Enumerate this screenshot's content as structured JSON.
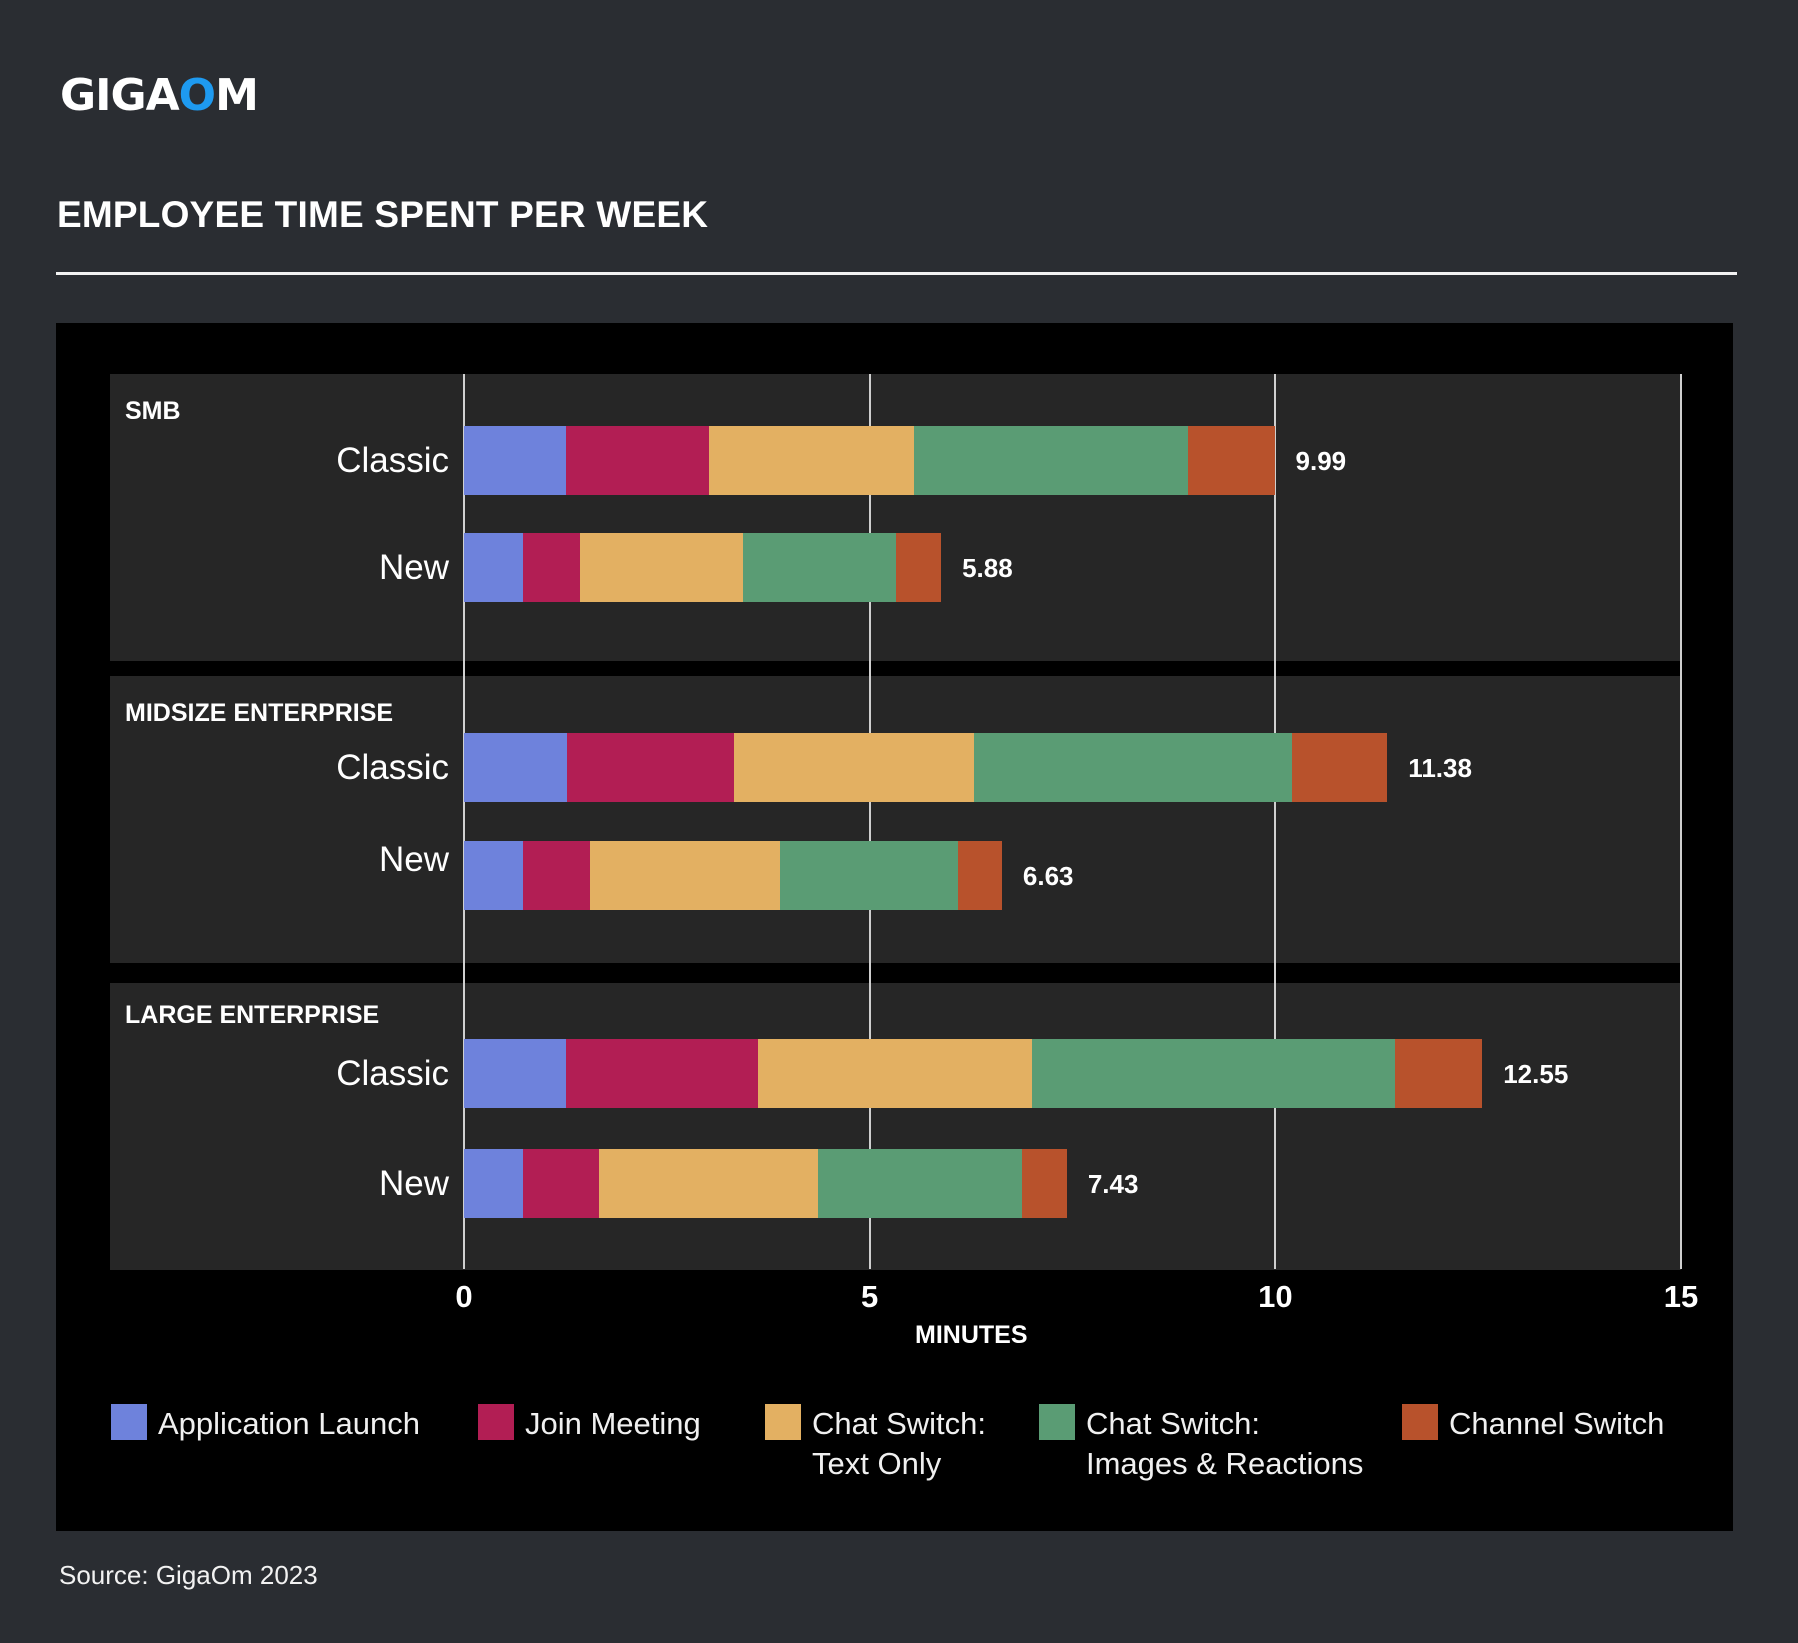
{
  "header": {
    "logo_text_prefix": "GIGA",
    "logo_text_o": "O",
    "logo_text_suffix": "M",
    "title": "EMPLOYEE TIME SPENT PER WEEK"
  },
  "footer": {
    "source": "Source: GigaOm 2023"
  },
  "colors": {
    "background": "#2a2d32",
    "logo_accent": "#1e9af0",
    "series": [
      "#6e82dc",
      "#b21e54",
      "#e3b062",
      "#5a9c74",
      "#b8522c"
    ]
  },
  "chart_data": {
    "type": "bar",
    "orientation": "horizontal",
    "stacked": true,
    "title": "EMPLOYEE TIME SPENT PER WEEK",
    "xlabel": "MINUTES",
    "ylabel": "",
    "xlim": [
      0,
      15
    ],
    "xticks": [
      0,
      5,
      10,
      15
    ],
    "grid": true,
    "legend_position": "bottom",
    "series_names": [
      "Application Launch",
      "Join Meeting",
      "Chat Switch: Text Only",
      "Chat Switch: Images & Reactions",
      "Channel Switch"
    ],
    "legend": [
      {
        "line1": "Application Launch",
        "line2": ""
      },
      {
        "line1": "Join Meeting",
        "line2": ""
      },
      {
        "line1": "Chat Switch:",
        "line2": "Text Only"
      },
      {
        "line1": "Chat Switch:",
        "line2": "Images & Reactions"
      },
      {
        "line1": "Channel Switch",
        "line2": ""
      }
    ],
    "groups": [
      {
        "name": "SMB",
        "bars": [
          {
            "category": "Classic",
            "values": [
              1.26,
              1.76,
              2.53,
              3.37,
              1.07
            ],
            "total": 9.99,
            "total_label": "9.99"
          },
          {
            "category": "New",
            "values": [
              0.73,
              0.7,
              2.01,
              1.89,
              0.55
            ],
            "total": 5.88,
            "total_label": "5.88"
          }
        ]
      },
      {
        "name": "MIDSIZE ENTERPRISE",
        "bars": [
          {
            "category": "Classic",
            "values": [
              1.27,
              2.06,
              2.96,
              3.92,
              1.17
            ],
            "total": 11.38,
            "total_label": "11.38"
          },
          {
            "category": "New",
            "values": [
              0.73,
              0.82,
              2.35,
              2.19,
              0.54
            ],
            "total": 6.63,
            "total_label": "6.63"
          }
        ]
      },
      {
        "name": "LARGE ENTERPRISE",
        "bars": [
          {
            "category": "Classic",
            "values": [
              1.26,
              2.36,
              3.38,
              4.48,
              1.07
            ],
            "total": 12.55,
            "total_label": "12.55"
          },
          {
            "category": "New",
            "values": [
              0.73,
              0.94,
              2.69,
              2.52,
              0.55
            ],
            "total": 7.43,
            "total_label": "7.43"
          }
        ]
      }
    ]
  }
}
